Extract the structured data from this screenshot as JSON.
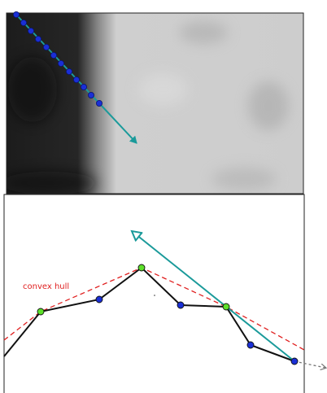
{
  "annotation": "convex hull"
}
